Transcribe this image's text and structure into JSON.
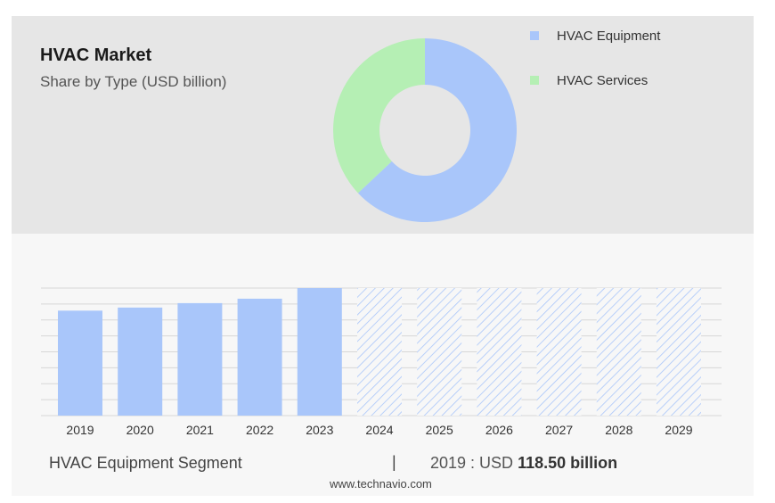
{
  "header": {
    "title": "HVAC Market",
    "subtitle": "Share by Type (USD billion)"
  },
  "legend": [
    {
      "label": "HVAC Equipment",
      "color": "#a9c6fa"
    },
    {
      "label": "HVAC Services",
      "color": "#b5efb4"
    }
  ],
  "footer": {
    "segment_label": "HVAC Equipment Segment",
    "divider": "|",
    "year_prefix": "2019 : USD",
    "value_text": "118.50 billion",
    "website": "www.technavio.com"
  },
  "chart_data": [
    {
      "type": "pie",
      "variant": "donut",
      "labels": [
        "HVAC Equipment",
        "HVAC Services"
      ],
      "values": [
        63,
        37
      ],
      "colors": [
        "#a9c6fa",
        "#b5efb4"
      ],
      "legend_position": "top-right"
    },
    {
      "type": "bar",
      "categories": [
        "2019",
        "2020",
        "2021",
        "2022",
        "2023",
        "2024",
        "2025",
        "2026",
        "2027",
        "2028",
        "2029"
      ],
      "values": [
        118.5,
        122,
        127,
        132,
        144,
        null,
        null,
        null,
        null,
        null,
        null
      ],
      "forecast_categories": [
        "2024",
        "2025",
        "2026",
        "2027",
        "2028",
        "2029"
      ],
      "ylim": [
        0,
        144
      ],
      "grid": true,
      "bar_color": "#a9c6fa"
    }
  ]
}
